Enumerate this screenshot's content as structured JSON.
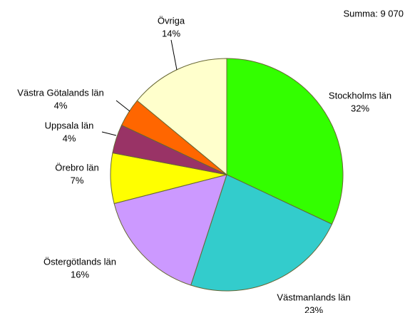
{
  "chart_data": {
    "type": "pie",
    "annotation": "Summa: 9 070",
    "categories": [
      "Stockholms län",
      "Västmanlands län",
      "Östergötlands län",
      "Örebro län",
      "Uppsala län",
      "Västra Götalands län",
      "Övriga"
    ],
    "values": [
      32,
      23,
      16,
      7,
      4,
      4,
      14
    ],
    "value_labels": [
      "32%",
      "23%",
      "16%",
      "7%",
      "4%",
      "4%",
      "14%"
    ],
    "colors": [
      "#33ff00",
      "#33cccc",
      "#cc99ff",
      "#ffff00",
      "#993366",
      "#ff6600",
      "#ffffcc"
    ]
  }
}
